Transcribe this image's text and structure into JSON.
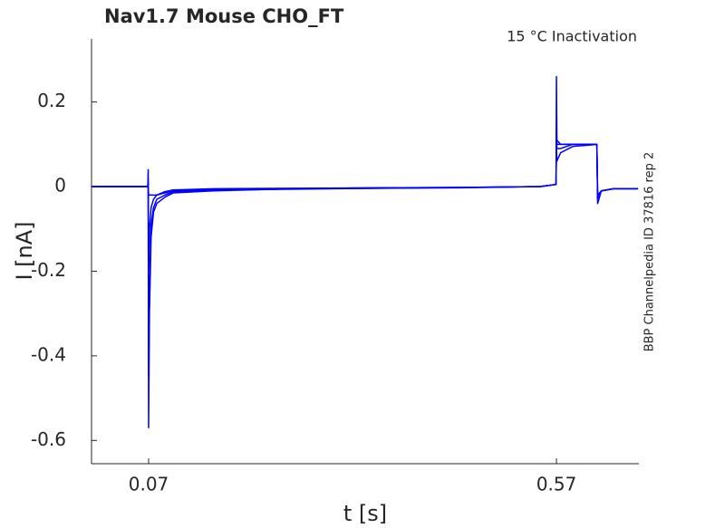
{
  "chart_data": {
    "type": "line",
    "title": "Nav1.7  Mouse  CHO_FT",
    "annotation": "15 °C  Inactivation",
    "side_note": "BBP Channelpedia ID 37816 rep 2",
    "xlabel": "t [s]",
    "ylabel": "I [nA]",
    "xlim": [
      0,
      0.671
    ],
    "ylim": [
      -0.655,
      0.349
    ],
    "xticks": [
      0.07,
      0.57
    ],
    "yticks": [
      0.2,
      0,
      -0.2,
      -0.4,
      -0.6
    ],
    "grid": false,
    "x": [
      0,
      0.03,
      0.06,
      0.069,
      0.0695,
      0.07,
      0.071,
      0.073,
      0.076,
      0.08,
      0.09,
      0.1,
      0.15,
      0.25,
      0.35,
      0.45,
      0.55,
      0.5695,
      0.57,
      0.5705,
      0.575,
      0.59,
      0.61,
      0.6195,
      0.6205,
      0.625,
      0.64,
      0.67
    ],
    "series": [
      {
        "color": "#0000ff",
        "values": [
          0,
          0,
          0,
          0,
          0.04,
          -0.57,
          -0.3,
          -0.12,
          -0.06,
          -0.04,
          -0.025,
          -0.015,
          -0.01,
          -0.005,
          -0.004,
          -0.003,
          0,
          0.005,
          0.26,
          0.11,
          0.1,
          0.1,
          0.1,
          0.1,
          -0.04,
          -0.01,
          -0.005,
          -0.005
        ]
      },
      {
        "color": "#0000ff",
        "values": [
          0,
          0,
          0,
          0,
          0.02,
          -0.45,
          -0.25,
          -0.09,
          -0.05,
          -0.03,
          -0.02,
          -0.012,
          -0.008,
          -0.006,
          -0.004,
          -0.002,
          0,
          0.005,
          0.14,
          0.09,
          0.09,
          0.1,
          0.1,
          0.1,
          -0.03,
          -0.01,
          -0.005,
          -0.005
        ]
      },
      {
        "color": "#0000ff",
        "values": [
          0,
          0,
          0,
          0,
          0.01,
          -0.2,
          -0.1,
          -0.05,
          -0.03,
          -0.02,
          -0.012,
          -0.008,
          -0.005,
          -0.004,
          -0.003,
          -0.002,
          0,
          0.005,
          0.1,
          0.06,
          0.08,
          0.095,
          0.098,
          0.1,
          -0.02,
          -0.01,
          -0.005,
          -0.005
        ]
      },
      {
        "color": "#0000ff",
        "values": [
          0,
          0,
          0,
          0,
          0,
          -0.02,
          -0.02,
          -0.02,
          -0.02,
          -0.02,
          -0.015,
          -0.01,
          -0.008,
          -0.005,
          -0.003,
          -0.002,
          0,
          0.005,
          0.12,
          0.1,
          0.1,
          0.1,
          0.1,
          0.1,
          -0.03,
          -0.01,
          -0.005,
          -0.005
        ]
      }
    ]
  }
}
